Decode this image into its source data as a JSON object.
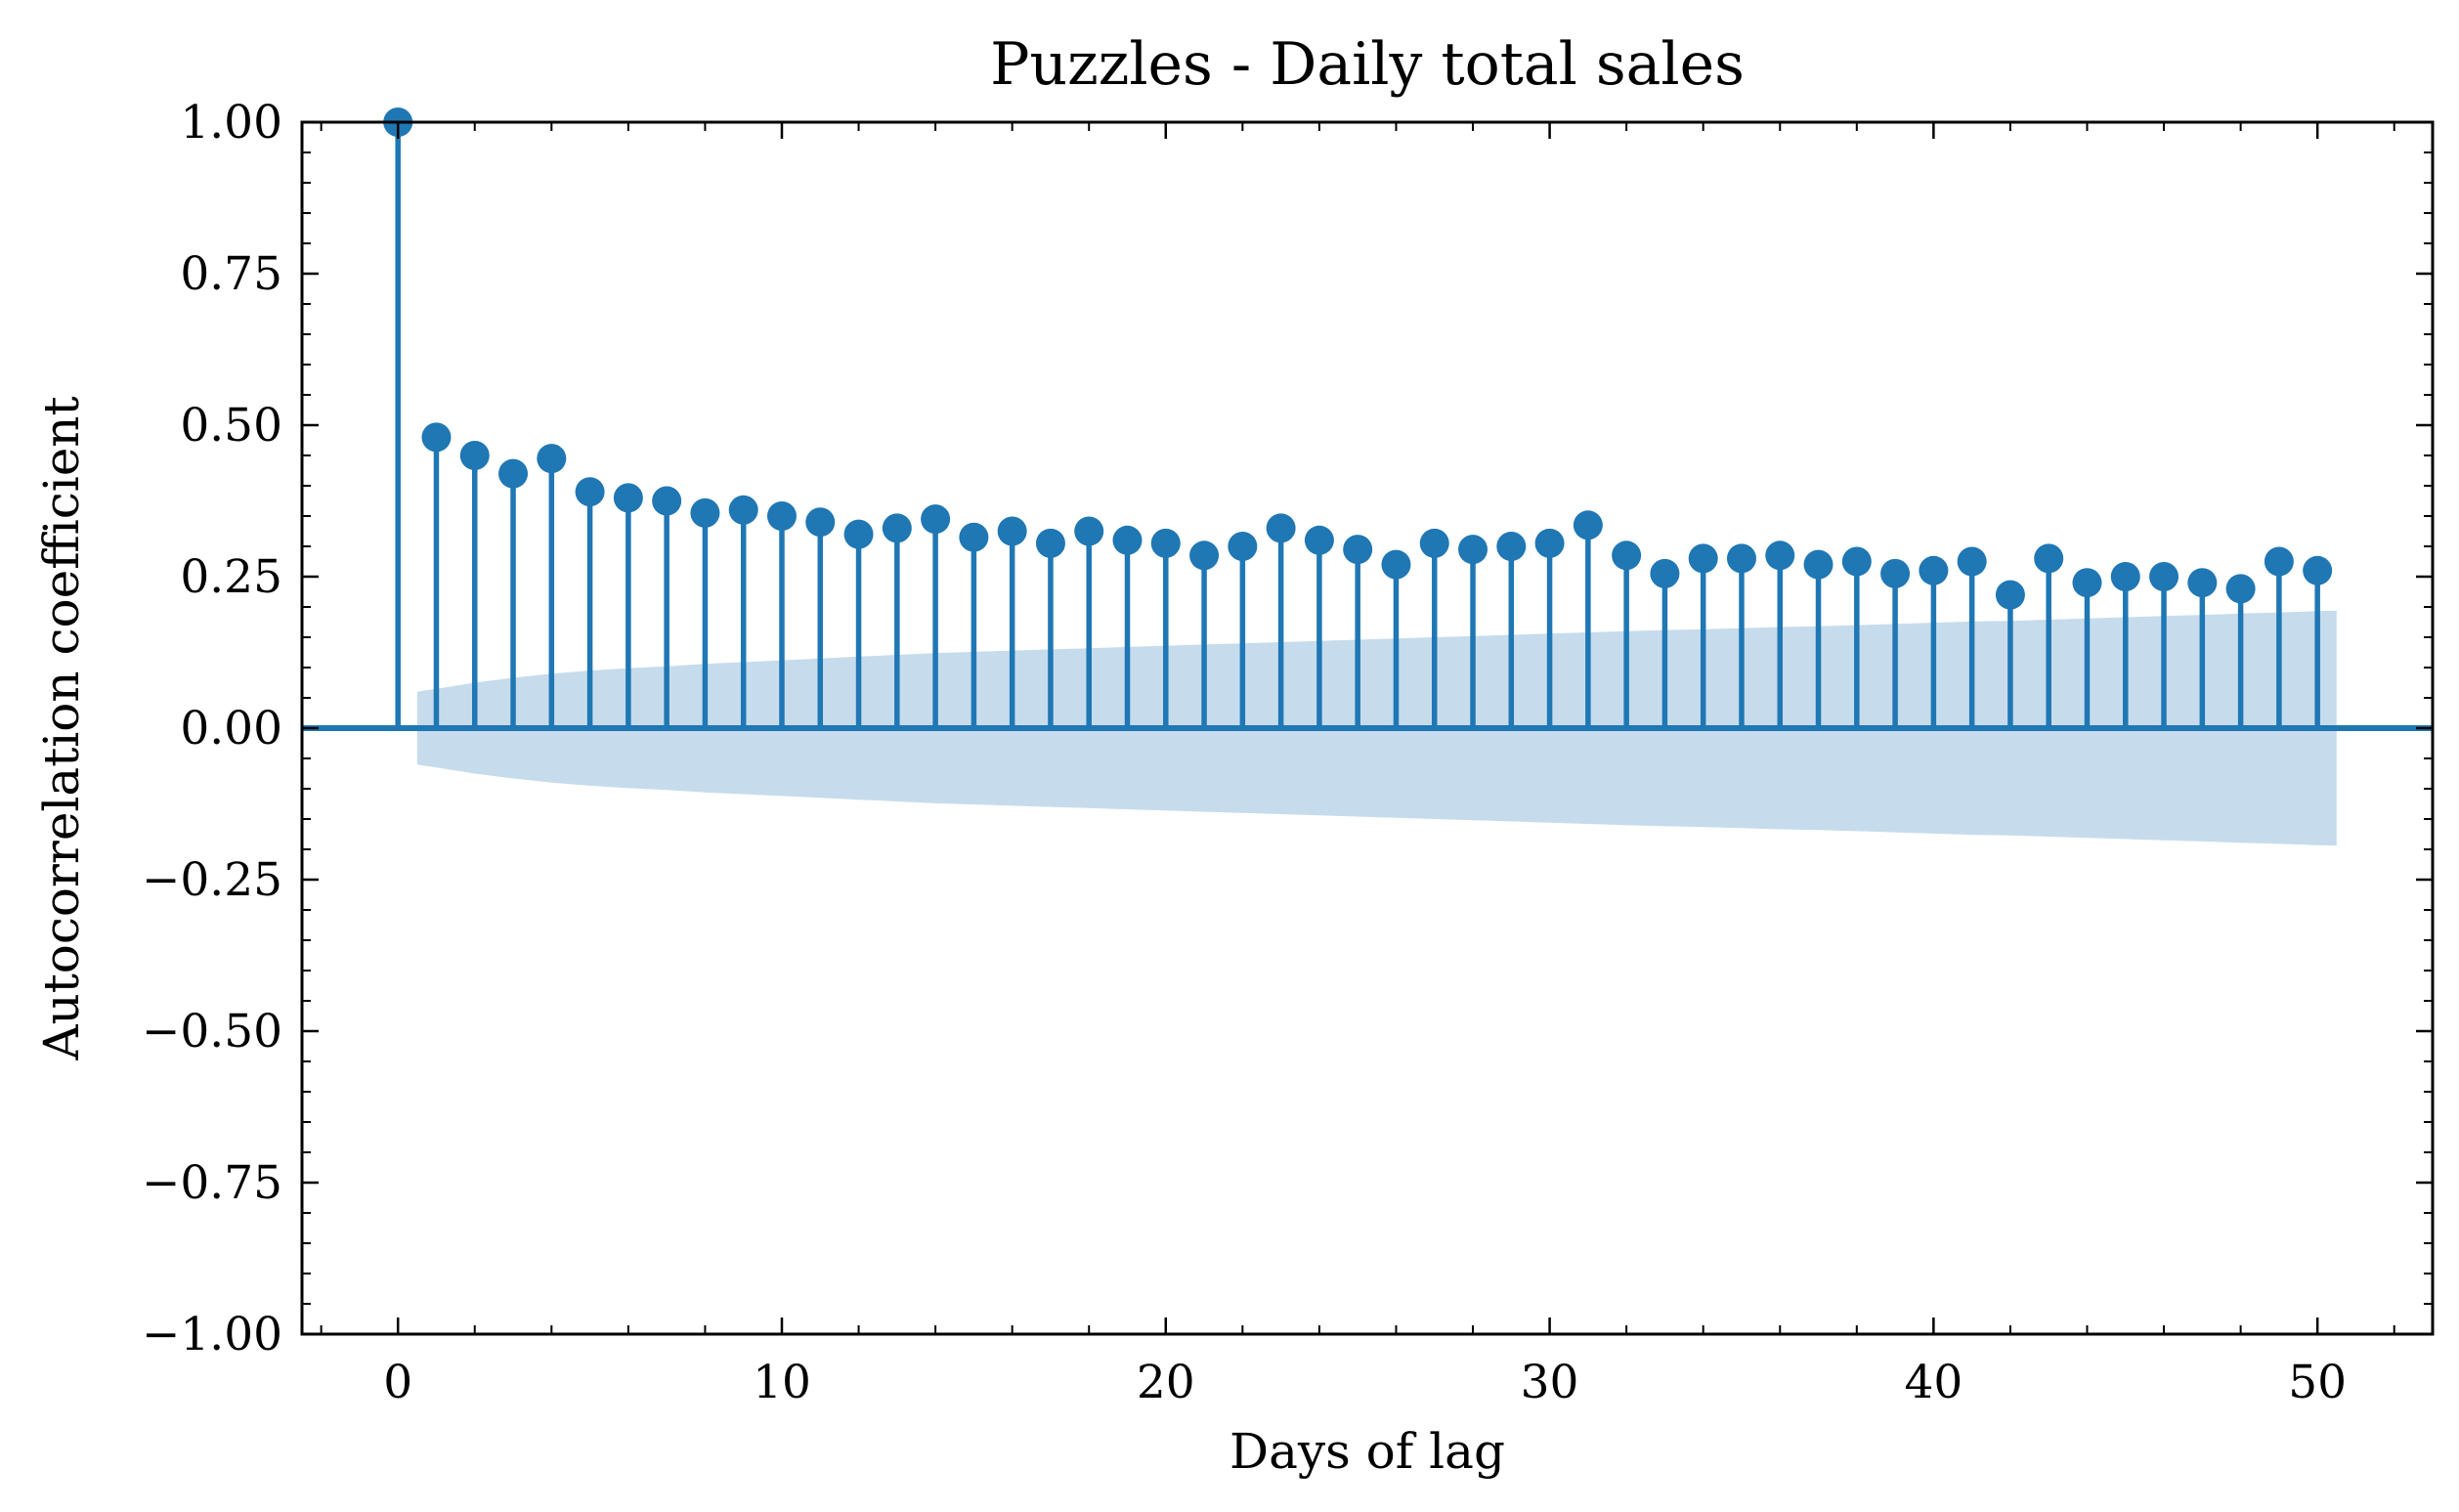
{
  "chart_data": {
    "type": "stem",
    "title": "Puzzles - Daily total sales",
    "xlabel": "Days of lag",
    "ylabel": "Autocorrelation coefficient",
    "xlim": [
      -2.5,
      53
    ],
    "ylim": [
      -1.0,
      1.0
    ],
    "x_ticks": [
      0,
      10,
      20,
      30,
      40,
      50
    ],
    "x_tick_labels": [
      "0",
      "10",
      "20",
      "30",
      "40",
      "50"
    ],
    "y_ticks": [
      1.0,
      0.75,
      0.5,
      0.25,
      0.0,
      -0.25,
      -0.5,
      -0.75,
      -1.0
    ],
    "y_tick_labels": [
      "1.00",
      "0.75",
      "0.50",
      "0.25",
      "0.00",
      "−0.25",
      "−0.50",
      "−0.75",
      "−1.00"
    ],
    "grid": false,
    "colors": {
      "series": "#1f77b4",
      "band": "#c6dcec"
    },
    "series": [
      {
        "x": [
          0,
          1,
          2,
          3,
          4,
          5,
          6,
          7,
          8,
          9,
          10,
          11,
          12,
          13,
          14,
          15,
          16,
          17,
          18,
          19,
          20,
          21,
          22,
          23,
          24,
          25,
          26,
          27,
          28,
          29,
          30,
          31,
          32,
          33,
          34,
          35,
          36,
          37,
          38,
          39,
          40,
          41,
          42,
          43,
          44,
          45,
          46,
          47,
          48,
          49,
          50
        ],
        "values": [
          1.0,
          0.48,
          0.45,
          0.42,
          0.445,
          0.39,
          0.38,
          0.375,
          0.355,
          0.36,
          0.35,
          0.34,
          0.32,
          0.33,
          0.345,
          0.315,
          0.325,
          0.305,
          0.325,
          0.31,
          0.305,
          0.285,
          0.3,
          0.33,
          0.31,
          0.295,
          0.27,
          0.305,
          0.295,
          0.3,
          0.305,
          0.335,
          0.285,
          0.255,
          0.28,
          0.28,
          0.285,
          0.27,
          0.275,
          0.255,
          0.26,
          0.275,
          0.22,
          0.28,
          0.24,
          0.25,
          0.25,
          0.24,
          0.23,
          0.275,
          0.26
        ]
      }
    ],
    "confidence_band": {
      "x": [
        0.5,
        1,
        2,
        3,
        4,
        5,
        6,
        7,
        8,
        9,
        10,
        11,
        12,
        13,
        14,
        15,
        16,
        17,
        18,
        19,
        20,
        21,
        22,
        23,
        24,
        25,
        26,
        27,
        28,
        29,
        30,
        31,
        32,
        33,
        34,
        35,
        36,
        37,
        38,
        39,
        40,
        41,
        42,
        43,
        44,
        45,
        46,
        47,
        48,
        49,
        50,
        50.5
      ],
      "upper": [
        0.06,
        0.065,
        0.075,
        0.083,
        0.09,
        0.095,
        0.099,
        0.102,
        0.106,
        0.109,
        0.112,
        0.115,
        0.118,
        0.121,
        0.124,
        0.126,
        0.128,
        0.13,
        0.132,
        0.134,
        0.136,
        0.138,
        0.14,
        0.142,
        0.144,
        0.146,
        0.148,
        0.15,
        0.152,
        0.154,
        0.156,
        0.158,
        0.16,
        0.162,
        0.163,
        0.165,
        0.167,
        0.168,
        0.17,
        0.172,
        0.174,
        0.176,
        0.177,
        0.179,
        0.181,
        0.183,
        0.185,
        0.187,
        0.189,
        0.191,
        0.193,
        0.194
      ]
    }
  }
}
